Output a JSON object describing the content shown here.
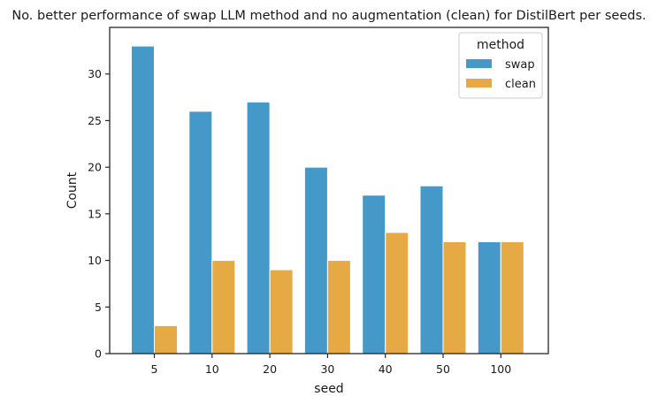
{
  "chart_data": {
    "type": "bar",
    "title": "No. better performance of swap LLM method and no augmentation (clean) for DistilBert per seeds.",
    "xlabel": "seed",
    "ylabel": "Count",
    "categories": [
      "5",
      "10",
      "20",
      "30",
      "40",
      "50",
      "100"
    ],
    "series": [
      {
        "name": "swap",
        "values": [
          33,
          26,
          27,
          20,
          17,
          18,
          12
        ],
        "color": "#4499c8"
      },
      {
        "name": "clean",
        "values": [
          3,
          10,
          9,
          10,
          13,
          12,
          12
        ],
        "color": "#e6aa45"
      }
    ],
    "ylim": [
      0,
      35
    ],
    "yticks": [
      0,
      5,
      10,
      15,
      20,
      25,
      30
    ],
    "grid": false,
    "legend": {
      "title": "method",
      "placement": "top-right"
    }
  }
}
